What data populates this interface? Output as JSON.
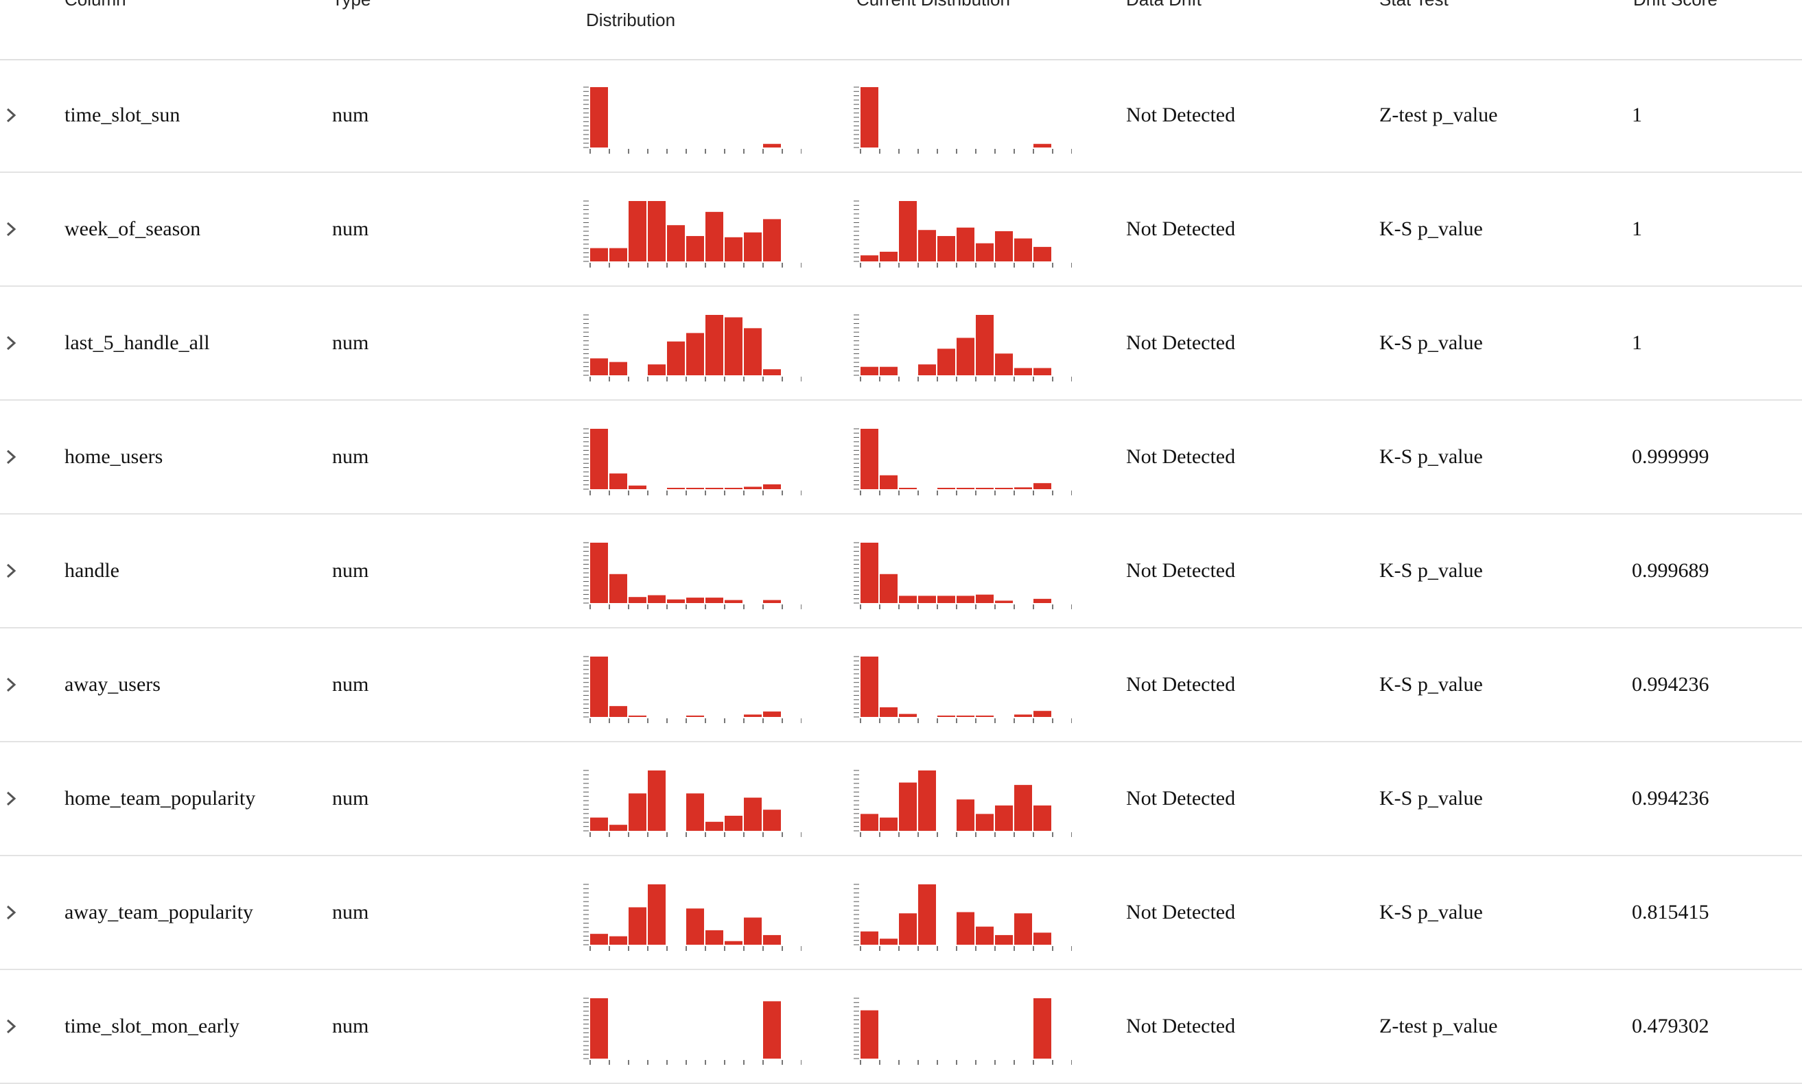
{
  "accent_color": "#d93025",
  "header": {
    "column": "Column",
    "type": "Type",
    "reference_distribution": "Distribution",
    "current_distribution": "Current Distribution",
    "data_drift": "Data Drift",
    "stat_test": "Stat Test",
    "drift_score": "Drift Score"
  },
  "rows": [
    {
      "column": "time_slot_sun",
      "type": "num",
      "drift": "Not Detected",
      "stat_test": "Z-test p_value",
      "score": "1",
      "ref": [
        1,
        0,
        0,
        0,
        0,
        0,
        0,
        0,
        0,
        0.06
      ],
      "cur": [
        1,
        0,
        0,
        0,
        0,
        0,
        0,
        0,
        0,
        0.06
      ]
    },
    {
      "column": "week_of_season",
      "type": "num",
      "drift": "Not Detected",
      "stat_test": "K-S p_value",
      "score": "1",
      "ref": [
        0.22,
        0.22,
        1,
        1,
        0.6,
        0.42,
        0.82,
        0.4,
        0.48,
        0.7
      ],
      "cur": [
        0.1,
        0.16,
        1,
        0.52,
        0.42,
        0.56,
        0.3,
        0.5,
        0.38,
        0.24
      ]
    },
    {
      "column": "last_5_handle_all",
      "type": "num",
      "drift": "Not Detected",
      "stat_test": "K-S p_value",
      "score": "1",
      "ref": [
        0.28,
        0.22,
        0,
        0.18,
        0.56,
        0.7,
        1,
        0.96,
        0.78,
        0.1
      ],
      "cur": [
        0.14,
        0.14,
        0,
        0.18,
        0.44,
        0.62,
        1,
        0.36,
        0.12,
        0.12
      ]
    },
    {
      "column": "home_users",
      "type": "num",
      "drift": "Not Detected",
      "stat_test": "K-S p_value",
      "score": "0.999999",
      "ref": [
        1,
        0.26,
        0.06,
        0,
        0.01,
        0.01,
        0.01,
        0.01,
        0.04,
        0.08
      ],
      "cur": [
        1,
        0.23,
        0.01,
        0,
        0.01,
        0.01,
        0.01,
        0.01,
        0.03,
        0.1
      ]
    },
    {
      "column": "handle",
      "type": "num",
      "drift": "Not Detected",
      "stat_test": "K-S p_value",
      "score": "0.999689",
      "ref": [
        1,
        0.48,
        0.1,
        0.13,
        0.06,
        0.09,
        0.09,
        0.05,
        0,
        0.05
      ],
      "cur": [
        1,
        0.48,
        0.12,
        0.12,
        0.12,
        0.12,
        0.14,
        0.04,
        0,
        0.07
      ]
    },
    {
      "column": "away_users",
      "type": "num",
      "drift": "Not Detected",
      "stat_test": "K-S p_value",
      "score": "0.994236",
      "ref": [
        1,
        0.18,
        0.02,
        0,
        0,
        0.02,
        0,
        0,
        0.04,
        0.09
      ],
      "cur": [
        1,
        0.16,
        0.05,
        0,
        0.02,
        0.02,
        0.02,
        0,
        0.04,
        0.1
      ]
    },
    {
      "column": "home_team_popularity",
      "type": "num",
      "drift": "Not Detected",
      "stat_test": "K-S p_value",
      "score": "0.994236",
      "ref": [
        0.22,
        0.1,
        0.62,
        1,
        0,
        0.62,
        0.15,
        0.25,
        0.55,
        0.35
      ],
      "cur": [
        0.28,
        0.22,
        0.8,
        1,
        0,
        0.52,
        0.28,
        0.42,
        0.76,
        0.42
      ]
    },
    {
      "column": "away_team_popularity",
      "type": "num",
      "drift": "Not Detected",
      "stat_test": "K-S p_value",
      "score": "0.815415",
      "ref": [
        0.18,
        0.14,
        0.62,
        1,
        0,
        0.6,
        0.24,
        0.06,
        0.45,
        0.16
      ],
      "cur": [
        0.22,
        0.1,
        0.52,
        1,
        0,
        0.54,
        0.3,
        0.16,
        0.52,
        0.2
      ]
    },
    {
      "column": "time_slot_mon_early",
      "type": "num",
      "drift": "Not Detected",
      "stat_test": "Z-test p_value",
      "score": "0.479302",
      "ref": [
        1,
        0,
        0,
        0,
        0,
        0,
        0,
        0,
        0,
        0.95
      ],
      "cur": [
        0.8,
        0,
        0,
        0,
        0,
        0,
        0,
        0,
        0,
        1
      ]
    }
  ]
}
